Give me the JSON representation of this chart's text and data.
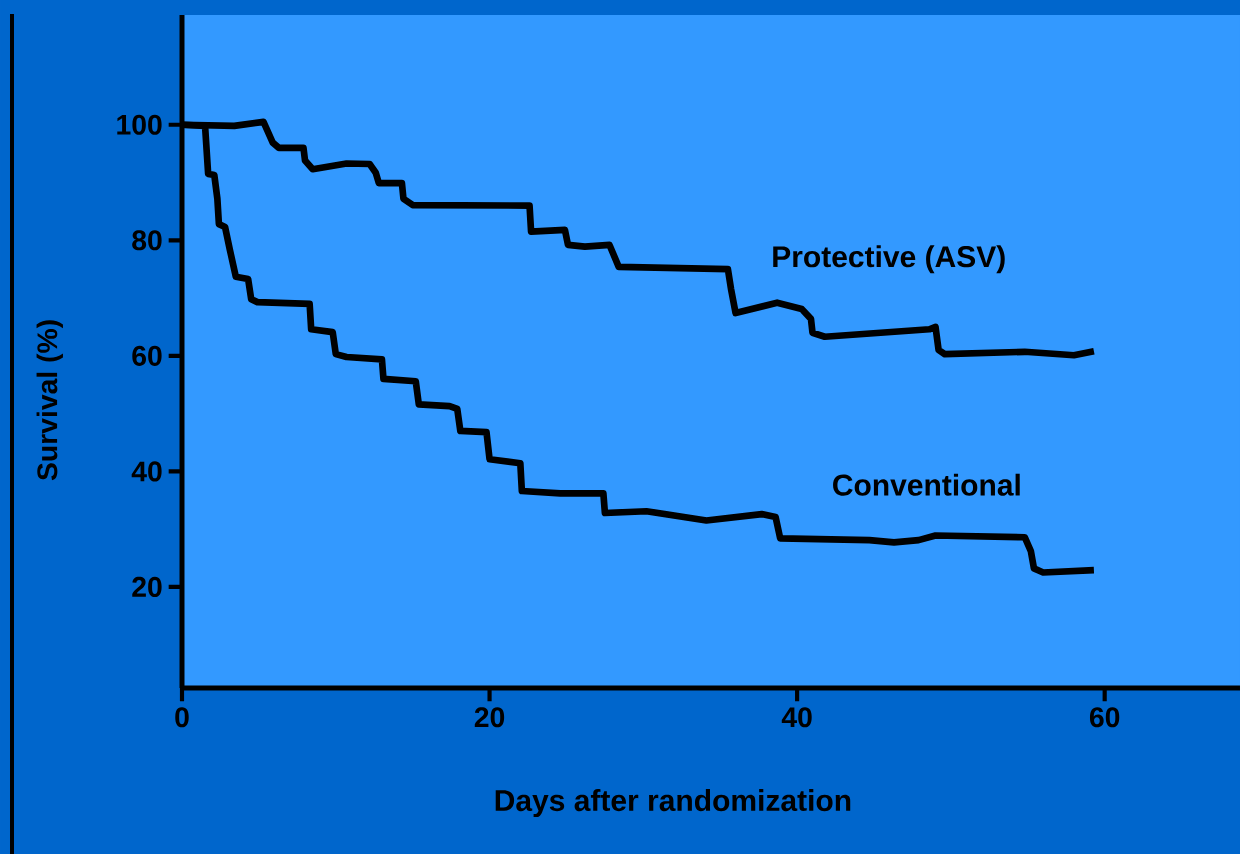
{
  "chart_data": {
    "type": "line",
    "xlabel": "Days after randomization",
    "ylabel": "Survival  (%)",
    "xlim": [
      0,
      68.8
    ],
    "ylim": [
      2.5,
      119
    ],
    "xticks": [
      0,
      20,
      40,
      60
    ],
    "yticks": [
      20,
      40,
      60,
      80,
      100
    ],
    "legend": false,
    "grid": false,
    "marker": "none",
    "line_style": "solid",
    "series": [
      {
        "name": "Protective (ASV)",
        "color": "#000000",
        "x": [
          0,
          3.4,
          5.3,
          5.9,
          6.3,
          7.9,
          8.0,
          8.5,
          10.7,
          12.2,
          12.6,
          12.8,
          14.3,
          14.4,
          15.0,
          22.6,
          22.7,
          24.9,
          25.1,
          26.2,
          27.8,
          28.4,
          35.5,
          35.7,
          36.0,
          38.7,
          40.3,
          40.9,
          41.0,
          41.8,
          48.6,
          49.0,
          49.2,
          49.6,
          54.8,
          58.0,
          59.3
        ],
        "values": [
          100,
          99.8,
          100.5,
          96.9,
          96,
          96,
          93.8,
          92.3,
          93.3,
          93.2,
          91.7,
          89.9,
          89.9,
          87.2,
          86.1,
          86.0,
          81.5,
          81.8,
          79.2,
          78.9,
          79.2,
          75.4,
          75.0,
          71.6,
          67.4,
          69.2,
          68.1,
          66.4,
          64.0,
          63.3,
          64.6,
          65.0,
          61.0,
          60.3,
          60.7,
          60.1,
          60.8
        ]
      },
      {
        "name": "Conventional",
        "color": "#000000",
        "x": [
          0,
          1.5,
          1.7,
          2.1,
          2.3,
          2.4,
          2.8,
          3.1,
          3.5,
          4.3,
          4.5,
          4.9,
          8.3,
          8.4,
          9.8,
          10.0,
          10.7,
          13.0,
          13.1,
          15.2,
          15.4,
          17.4,
          17.9,
          18.1,
          19.8,
          20.0,
          22.0,
          22.1,
          24.6,
          27.4,
          27.5,
          30.2,
          34.1,
          37.7,
          38.6,
          38.9,
          44.7,
          46.3,
          47.9,
          49.0,
          54.8,
          55.2,
          55.4,
          56.0,
          59.3
        ],
        "values": [
          100,
          99.8,
          91.5,
          91.3,
          87.2,
          82.8,
          82.3,
          78.5,
          73.7,
          73.3,
          69.8,
          69.3,
          69.0,
          64.6,
          64.1,
          60.3,
          59.8,
          59.4,
          56.0,
          55.6,
          51.6,
          51.3,
          50.8,
          47.0,
          46.8,
          42.1,
          41.4,
          36.6,
          36.2,
          36.2,
          32.8,
          33.1,
          31.5,
          32.6,
          32.1,
          28.4,
          28.1,
          27.7,
          28.1,
          28.9,
          28.6,
          26.2,
          23.2,
          22.5,
          22.9
        ]
      }
    ]
  }
}
